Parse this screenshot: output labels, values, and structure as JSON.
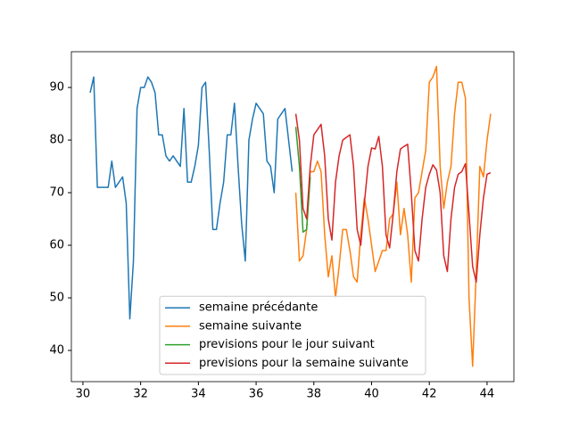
{
  "chart_data": {
    "type": "line",
    "series": [
      {
        "name": "semaine précédante",
        "color": "#1f77b4",
        "x": [
          30.25,
          30.375,
          30.5,
          30.625,
          30.75,
          30.875,
          31,
          31.125,
          31.25,
          31.375,
          31.5,
          31.625,
          31.75,
          31.875,
          32,
          32.125,
          32.25,
          32.375,
          32.5,
          32.625,
          32.75,
          32.875,
          33,
          33.125,
          33.25,
          33.375,
          33.5,
          33.625,
          33.75,
          33.875,
          34,
          34.125,
          34.25,
          34.375,
          34.5,
          34.625,
          34.75,
          34.875,
          35,
          35.125,
          35.25,
          35.375,
          35.5,
          35.625,
          35.75,
          35.875,
          36,
          36.125,
          36.25,
          36.375,
          36.5,
          36.625,
          36.75,
          36.875,
          37,
          37.125,
          37.25
        ],
        "values": [
          89,
          92,
          71,
          71,
          71,
          71,
          76,
          71,
          72,
          73,
          68,
          46,
          57,
          86,
          90,
          90,
          92,
          91,
          89,
          81,
          81,
          77,
          76,
          77,
          76,
          75,
          86,
          72,
          72,
          75,
          79,
          90,
          91,
          78,
          63,
          63,
          68,
          72,
          81,
          81,
          87,
          75,
          64,
          57,
          80,
          84,
          87,
          86,
          85,
          76,
          75,
          70,
          84,
          85,
          86,
          80,
          74
        ]
      },
      {
        "name": "semaine suivante",
        "color": "#ff7f0e",
        "x": [
          37.375,
          37.5,
          37.625,
          37.75,
          37.875,
          38,
          38.125,
          38.25,
          38.375,
          38.5,
          38.625,
          38.75,
          38.875,
          39,
          39.125,
          39.25,
          39.375,
          39.5,
          39.625,
          39.75,
          39.875,
          40,
          40.125,
          40.25,
          40.375,
          40.5,
          40.625,
          40.75,
          40.875,
          41,
          41.125,
          41.25,
          41.375,
          41.5,
          41.625,
          41.75,
          41.875,
          42,
          42.125,
          42.25,
          42.375,
          42.5,
          42.625,
          42.75,
          42.875,
          43,
          43.125,
          43.25,
          43.375,
          43.5,
          43.625,
          43.75,
          43.875,
          44,
          44.125
        ],
        "values": [
          70,
          57,
          58,
          63,
          74,
          74,
          76,
          74,
          62,
          54,
          58,
          50,
          56,
          63,
          63,
          59,
          54,
          53,
          62,
          69,
          65,
          60,
          55,
          57,
          59,
          59,
          65,
          66,
          72,
          62,
          67,
          62,
          53,
          69,
          70,
          74,
          78,
          91,
          92,
          94,
          75,
          67,
          72,
          75,
          85,
          91,
          91,
          88,
          50,
          37,
          55,
          75,
          73,
          80,
          85
        ]
      },
      {
        "name": "previsions pour le jour suivant",
        "color": "#2ca02c",
        "x": [
          37.375,
          37.5,
          37.625,
          37.75,
          37.875
        ],
        "values": [
          82.5,
          75,
          62.5,
          63,
          73
        ]
      },
      {
        "name": "previsions pour la semaine suivante",
        "color": "#d62728",
        "x": [
          37.375,
          37.5,
          37.625,
          37.75,
          37.875,
          38,
          38.125,
          38.25,
          38.375,
          38.5,
          38.625,
          38.75,
          38.875,
          39,
          39.125,
          39.25,
          39.375,
          39.5,
          39.625,
          39.75,
          39.875,
          40,
          40.125,
          40.25,
          40.375,
          40.5,
          40.625,
          40.75,
          40.875,
          41,
          41.125,
          41.25,
          41.375,
          41.5,
          41.625,
          41.75,
          41.875,
          42,
          42.125,
          42.25,
          42.375,
          42.5,
          42.625,
          42.75,
          42.875,
          43,
          43.125,
          43.25,
          43.375,
          43.5,
          43.625,
          43.75,
          43.875,
          44,
          44.125
        ],
        "values": [
          85,
          80,
          67,
          65,
          75,
          81,
          82,
          83,
          77,
          65,
          61,
          72,
          77,
          80,
          80.5,
          81,
          75,
          63,
          60,
          68,
          75,
          78.5,
          78.3,
          80.7,
          75,
          62,
          59.5,
          66,
          74,
          78.3,
          78.8,
          79.2,
          70,
          59,
          57,
          65,
          71,
          73.5,
          75.3,
          74.3,
          70,
          58,
          55,
          65,
          71,
          73.5,
          74,
          75.5,
          66,
          56,
          53,
          62,
          69,
          73.5,
          73.8
        ]
      }
    ],
    "xlim": [
      29.6,
      44.93
    ],
    "xticks": [
      30,
      32,
      34,
      36,
      38,
      40,
      42,
      44
    ],
    "ylim": [
      34.07,
      96.8
    ],
    "yticks": [
      40,
      50,
      60,
      70,
      80,
      90
    ],
    "grid": false,
    "legend": "lower center"
  }
}
